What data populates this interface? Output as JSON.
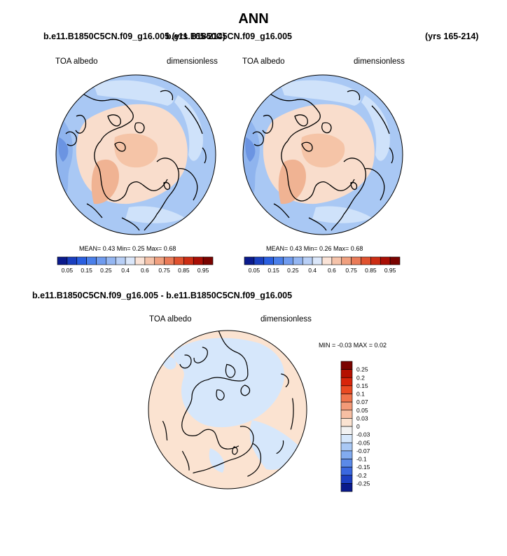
{
  "title": "ANN",
  "panel_left": {
    "case": "b.e11.B1850C5CN.f09_g16.005 (yrs 165-214)",
    "var_label": "TOA albedo",
    "units": "dimensionless",
    "stats": "MEAN=  0.43  Min=  0.25  Max=  0.68"
  },
  "panel_right": {
    "case": "b.e11.B1850C5CN.f09_g16.005",
    "years": "(yrs 165-214)",
    "var_label": "TOA albedo",
    "units": "dimensionless",
    "stats": "MEAN=  0.43  Min=  0.26  Max=  0.68"
  },
  "panel_diff": {
    "case": "b.e11.B1850C5CN.f09_g16.005 - b.e11.B1850C5CN.f09_g16.005",
    "var_label": "TOA albedo",
    "units": "dimensionless",
    "stats": "MIN =  -0.03 MAX =   0.02"
  },
  "colors": {
    "ocean_mid": "#a9c8f4",
    "ocean_low": "#8fb4ee",
    "ocean_lowest": "#6b94e2",
    "ice_light": "#cfe2fa",
    "arctic_warm": "#f9ddcc",
    "arctic_core": "#f5c4a7",
    "greenland": "#f0b393",
    "diff_pos": "#fbe3d1",
    "diff_neg": "#d6e7fb",
    "coast": "#000000"
  },
  "chart_data": [
    {
      "type": "heatmap",
      "title": "TOA albedo",
      "projection": "north polar stereographic",
      "units": "dimensionless",
      "mean": 0.43,
      "min": 0.25,
      "max": 0.68,
      "colorbar": {
        "ticks": [
          "0.05",
          "0.15",
          "0.25",
          "0.4",
          "0.6",
          "0.75",
          "0.85",
          "0.95"
        ],
        "levels": [
          0.05,
          0.1,
          0.15,
          0.2,
          0.25,
          0.3,
          0.4,
          0.5,
          0.6,
          0.65,
          0.75,
          0.8,
          0.85,
          0.9,
          0.95
        ],
        "colors": [
          "#0a1a8c",
          "#1a3fbf",
          "#2a5fe0",
          "#4a7fea",
          "#6f9bef",
          "#94b6f2",
          "#b8cff6",
          "#dbe7fa",
          "#fae3d7",
          "#f5c3aa",
          "#f0a07f",
          "#ea7b58",
          "#e0522f",
          "#cc2d14",
          "#a90e05",
          "#7a0300"
        ]
      }
    },
    {
      "type": "heatmap",
      "title": "TOA albedo",
      "projection": "north polar stereographic",
      "units": "dimensionless",
      "mean": 0.43,
      "min": 0.26,
      "max": 0.68,
      "colorbar": {
        "ticks": [
          "0.05",
          "0.15",
          "0.25",
          "0.4",
          "0.6",
          "0.75",
          "0.85",
          "0.95"
        ],
        "levels": [
          0.05,
          0.1,
          0.15,
          0.2,
          0.25,
          0.3,
          0.4,
          0.5,
          0.6,
          0.65,
          0.75,
          0.8,
          0.85,
          0.9,
          0.95
        ],
        "colors": [
          "#0a1a8c",
          "#1a3fbf",
          "#2a5fe0",
          "#4a7fea",
          "#6f9bef",
          "#94b6f2",
          "#b8cff6",
          "#dbe7fa",
          "#fae3d7",
          "#f5c3aa",
          "#f0a07f",
          "#ea7b58",
          "#e0522f",
          "#cc2d14",
          "#a90e05",
          "#7a0300"
        ]
      }
    },
    {
      "type": "heatmap",
      "title": "TOA albedo",
      "projection": "north polar stereographic",
      "units": "dimensionless",
      "min": -0.03,
      "max": 0.02,
      "colorbar": {
        "orientation": "vertical",
        "ticks": [
          "0.25",
          "0.2",
          "0.15",
          "0.1",
          "0.07",
          "0.05",
          "0.03",
          "0",
          "-0.03",
          "-0.05",
          "-0.07",
          "-0.1",
          "-0.15",
          "-0.2",
          "-0.25"
        ],
        "colors": [
          "#7a0300",
          "#b51000",
          "#d8250a",
          "#ea4a22",
          "#f0744c",
          "#f39a78",
          "#f7bfa3",
          "#fbe3d1",
          "#f2f2f2",
          "#d6e7fb",
          "#a9c8f4",
          "#82abef",
          "#5b8ae8",
          "#3a68e0",
          "#1c3fc2",
          "#0a1a8c"
        ]
      }
    }
  ]
}
